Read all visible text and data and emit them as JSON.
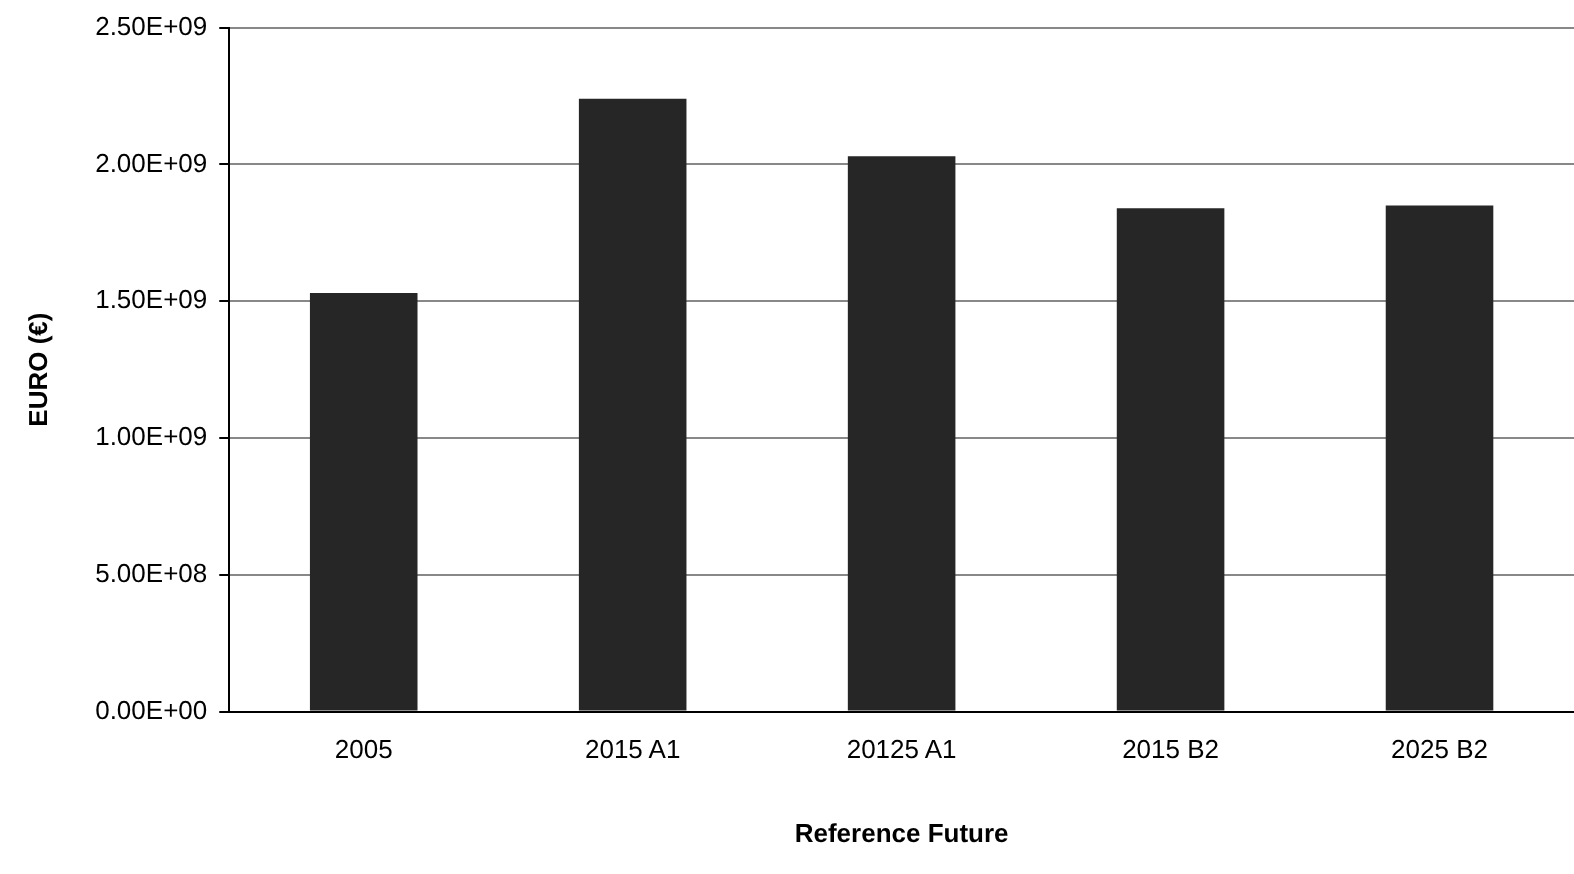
{
  "chart_data": {
    "type": "bar",
    "xlabel": "Reference Future",
    "ylabel": "EURO (€)",
    "categories": [
      "2005",
      "2015 A1",
      "20125 A1",
      "2015 B2",
      "2025 B2"
    ],
    "values": [
      1530000000.0,
      2240000000.0,
      2030000000.0,
      1840000000.0,
      1850000000.0
    ],
    "color": "#262626",
    "ylim": [
      0,
      2500000000.0
    ],
    "yticks": [
      {
        "value": 0,
        "label": "0.00E+00"
      },
      {
        "value": 500000000.0,
        "label": "5.00E+08"
      },
      {
        "value": 1000000000.0,
        "label": "1.00E+09"
      },
      {
        "value": 1500000000.0,
        "label": "1.50E+09"
      },
      {
        "value": 2000000000.0,
        "label": "2.00E+09"
      },
      {
        "value": 2500000000.0,
        "label": "2.50E+09"
      }
    ],
    "grid": "y"
  }
}
